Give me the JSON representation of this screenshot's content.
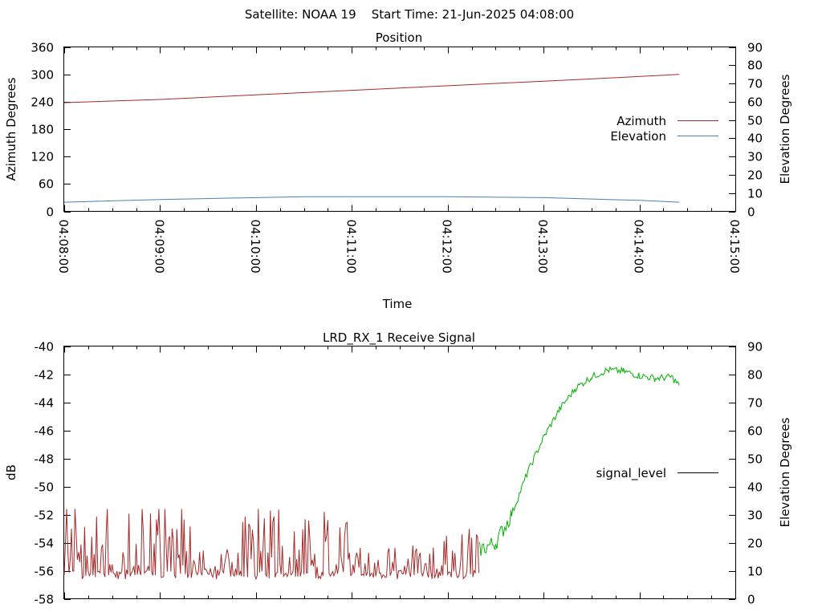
{
  "header": "Satellite: NOAA 19    Start Time: 21-Jun-2025 04:08:00",
  "chart_data": [
    {
      "type": "line",
      "title": "Position",
      "xlabel": "Time",
      "ylabel": "Azimuth Degrees",
      "y2label": "Elevation Degrees",
      "x_tick_labels": [
        "04:08:00",
        "04:09:00",
        "04:10:00",
        "04:11:00",
        "04:12:00",
        "04:13:00",
        "04:14:00",
        "04:15:00"
      ],
      "xlim_seconds": [
        0,
        420
      ],
      "ylim": [
        0,
        360
      ],
      "y_ticks": [
        0,
        60,
        120,
        180,
        240,
        300,
        360
      ],
      "y2lim": [
        0,
        90
      ],
      "y2_ticks": [
        0,
        10,
        20,
        30,
        40,
        50,
        60,
        70,
        80,
        90
      ],
      "legend": "right",
      "series": [
        {
          "name": "Azimuth",
          "axis": "y",
          "color": "#a52a2a",
          "x_seconds": [
            0,
            60,
            120,
            180,
            240,
            300,
            330,
            385
          ],
          "values": [
            238,
            245,
            255,
            265,
            275,
            285,
            290,
            300
          ]
        },
        {
          "name": "Elevation",
          "axis": "y2",
          "color": "#4682b4",
          "x_seconds": [
            0,
            60,
            120,
            150,
            180,
            240,
            300,
            360,
            385
          ],
          "values": [
            5,
            6.5,
            7.5,
            8,
            8,
            8,
            7.5,
            6,
            5
          ]
        }
      ]
    },
    {
      "type": "line",
      "title": "LRD_RX_1 Receive Signal",
      "ylabel": "dB",
      "y2label": "Elevation Degrees",
      "xlim_seconds": [
        0,
        420
      ],
      "ylim": [
        -58,
        -40
      ],
      "y_ticks": [
        -58,
        -56,
        -54,
        -52,
        -50,
        -48,
        -46,
        -44,
        -42,
        -40
      ],
      "y2lim": [
        0,
        90
      ],
      "y2_ticks": [
        0,
        10,
        20,
        30,
        40,
        50,
        60,
        70,
        80,
        90
      ],
      "legend": "right",
      "series": [
        {
          "name": "signal_level",
          "color_low": "#a52a2a",
          "color_high": "#00b000",
          "legend_color": "#000000",
          "low_segment_seconds": [
            0,
            260
          ],
          "noise_range_db": [
            -57.3,
            -51.6
          ],
          "x_seconds": [
            260,
            270,
            280,
            290,
            300,
            310,
            320,
            330,
            340,
            350,
            360,
            370,
            380,
            385
          ],
          "values": [
            -54.5,
            -54,
            -52,
            -49,
            -46.5,
            -44.5,
            -43,
            -42.2,
            -41.7,
            -41.8,
            -42.1,
            -42.3,
            -42.2,
            -42.8
          ]
        }
      ]
    }
  ]
}
